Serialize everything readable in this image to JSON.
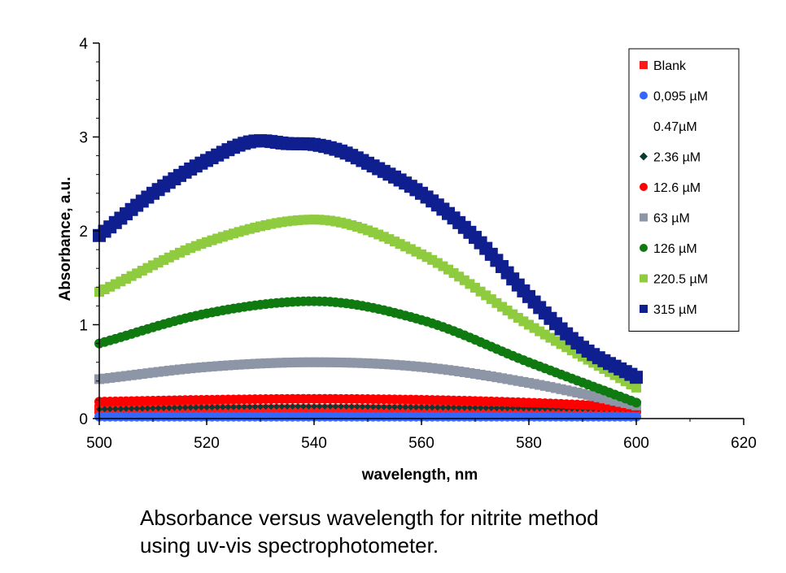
{
  "chart_data": {
    "type": "scatter",
    "xlabel": "wavelength, nm",
    "ylabel": "Absorbance, a.u.",
    "xlim": [
      500,
      620
    ],
    "ylim": [
      0,
      4
    ],
    "x_ticks": [
      "500",
      "520",
      "540",
      "560",
      "580",
      "600",
      "620"
    ],
    "y_ticks": [
      "0",
      "1",
      "2",
      "3",
      "4"
    ],
    "legend_position": "top-right",
    "x_range": [
      500,
      600
    ],
    "series": [
      {
        "name": "Blank",
        "color": "#ff1a1a",
        "marker": "square",
        "x": [
          500,
          520,
          540,
          560,
          580,
          600
        ],
        "y": [
          0.1,
          0.1,
          0.1,
          0.1,
          0.1,
          0.1
        ]
      },
      {
        "name": "0,095 µM",
        "color": "#3366ff",
        "marker": "circle",
        "x": [
          500,
          520,
          540,
          560,
          580,
          600
        ],
        "y": [
          0.02,
          0.02,
          0.02,
          0.02,
          0.02,
          0.02
        ]
      },
      {
        "name": "0.47µM",
        "color": "#ffffff",
        "marker": "none",
        "x": [
          500,
          520,
          540,
          560,
          580,
          600
        ],
        "y": [
          0.01,
          0.01,
          0.01,
          0.01,
          0.01,
          0.01
        ]
      },
      {
        "name": "2.36 µM",
        "color": "#0b3a33",
        "marker": "diamond",
        "x": [
          500,
          520,
          540,
          560,
          580,
          600
        ],
        "y": [
          0.1,
          0.12,
          0.13,
          0.12,
          0.11,
          0.1
        ]
      },
      {
        "name": "12.6 µM",
        "color": "#ff0000",
        "marker": "circle",
        "x": [
          500,
          520,
          540,
          560,
          580,
          600
        ],
        "y": [
          0.18,
          0.2,
          0.21,
          0.2,
          0.17,
          0.12
        ]
      },
      {
        "name": "63 µM",
        "color": "#8c96a6",
        "marker": "square",
        "x": [
          500,
          520,
          540,
          560,
          580,
          600
        ],
        "y": [
          0.42,
          0.55,
          0.6,
          0.55,
          0.38,
          0.14
        ]
      },
      {
        "name": "126 µM",
        "color": "#0f7a0f",
        "marker": "circle",
        "x": [
          500,
          520,
          540,
          560,
          580,
          600
        ],
        "y": [
          0.8,
          1.12,
          1.25,
          1.05,
          0.6,
          0.17
        ]
      },
      {
        "name": "220.5 µM",
        "color": "#8fcb3e",
        "marker": "square",
        "x": [
          500,
          520,
          540,
          560,
          580,
          600
        ],
        "y": [
          1.35,
          1.88,
          2.12,
          1.75,
          1.0,
          0.33
        ]
      },
      {
        "name": "315 µM",
        "color": "#0f1f8f",
        "marker": "square",
        "x": [
          500,
          510,
          520,
          530,
          535,
          540,
          545,
          550,
          560,
          570,
          580,
          590,
          600
        ],
        "y": [
          1.95,
          2.4,
          2.75,
          2.96,
          2.93,
          2.92,
          2.85,
          2.72,
          2.4,
          1.93,
          1.3,
          0.76,
          0.44
        ]
      }
    ]
  },
  "caption": {
    "line1": "Absorbance versus wavelength for nitrite method",
    "line2": "using uv-vis spectrophotometer."
  }
}
